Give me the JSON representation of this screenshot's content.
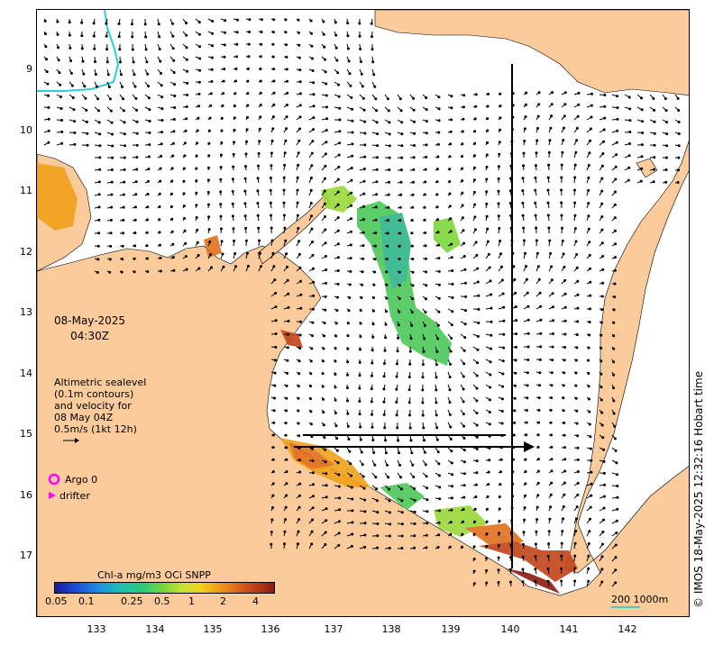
{
  "map": {
    "timestamp_date": "08-May-2025",
    "timestamp_time": "04:30Z",
    "sealevel_note": [
      "Altimetric sealevel",
      "(0.1m contours)",
      "and velocity for",
      "08 May 04Z",
      "0.5m/s (1kt 12h)"
    ],
    "argo_label": "Argo 0",
    "drifter_label": "drifter",
    "colorbar_title": "Chl-a mg/m3 OCi SNPP",
    "colorbar_ticks": [
      "0.05",
      "0.1",
      "0.25",
      "0.5",
      "1",
      "2",
      "4"
    ],
    "credit": "© IMOS 18-May-2025 12:32:16 Hobart time",
    "scale_label": "200  1000m",
    "lat_labels": [
      "9",
      "10",
      "11",
      "12",
      "13",
      "14",
      "15",
      "16",
      "17"
    ],
    "lon_labels": [
      "133",
      "134",
      "135",
      "136",
      "137",
      "138",
      "139",
      "140",
      "141",
      "142"
    ],
    "colors": {
      "land": "#fbcb9b",
      "chl_high": "#8c1a10",
      "argo": "#ff00ff",
      "contour": "#2ad0d8"
    }
  }
}
